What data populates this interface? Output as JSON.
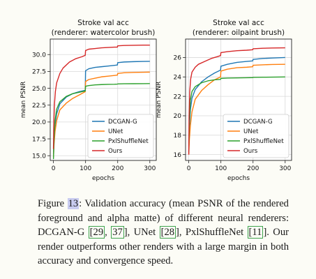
{
  "chart_data": [
    {
      "type": "line",
      "title": "Stroke val acc",
      "subtitle": "(renderer: watercolor brush)",
      "xlabel": "epochs",
      "ylabel": "mean PSNR",
      "xlim": [
        -10,
        320
      ],
      "ylim": [
        14.3,
        32.3
      ],
      "xticks": [
        0,
        100,
        200,
        300
      ],
      "yticks": [
        15.0,
        17.5,
        20.0,
        22.5,
        25.0,
        27.5,
        30.0
      ],
      "ytick_labels": [
        "15.0",
        "17.5",
        "20.0",
        "22.5",
        "25.0",
        "27.5",
        "30.0"
      ],
      "legend": "lower-right",
      "grid": true,
      "series": [
        {
          "name": "DCGAN-G",
          "color": "#1f77b4",
          "x": [
            0,
            2,
            5,
            10,
            20,
            40,
            60,
            80,
            99,
            100,
            110,
            130,
            150,
            170,
            190,
            199,
            200,
            220,
            250,
            280,
            300
          ],
          "y": [
            15.2,
            17.6,
            19.6,
            21.2,
            22.7,
            23.7,
            24.2,
            24.5,
            24.7,
            27.6,
            27.9,
            28.1,
            28.2,
            28.3,
            28.4,
            28.45,
            28.8,
            28.9,
            28.95,
            28.98,
            29.0
          ]
        },
        {
          "name": "UNet",
          "color": "#ff7f0e",
          "x": [
            0,
            2,
            5,
            10,
            20,
            40,
            60,
            80,
            99,
            100,
            110,
            130,
            150,
            170,
            190,
            199,
            200,
            220,
            250,
            280,
            300
          ],
          "y": [
            14.8,
            16.8,
            18.6,
            20.2,
            21.8,
            22.8,
            23.5,
            24.0,
            24.5,
            26.0,
            26.3,
            26.5,
            26.7,
            26.8,
            26.9,
            26.95,
            27.2,
            27.3,
            27.35,
            27.38,
            27.4
          ]
        },
        {
          "name": "PxlShuffleNet",
          "color": "#2ca02c",
          "x": [
            0,
            2,
            5,
            10,
            20,
            40,
            60,
            80,
            99,
            100,
            110,
            130,
            150,
            170,
            190,
            199,
            200,
            220,
            250,
            280,
            300
          ],
          "y": [
            14.5,
            17.4,
            20.2,
            21.9,
            23.0,
            23.8,
            24.2,
            24.4,
            24.6,
            25.3,
            25.4,
            25.5,
            25.55,
            25.58,
            25.6,
            25.62,
            25.65,
            25.67,
            25.68,
            25.69,
            25.7
          ]
        },
        {
          "name": "Ours",
          "color": "#d62728",
          "x": [
            0,
            1,
            3,
            6,
            10,
            20,
            30,
            50,
            70,
            90,
            99,
            100,
            110,
            130,
            150,
            170,
            190,
            199,
            200,
            220,
            250,
            280,
            300
          ],
          "y": [
            16.0,
            19.5,
            22.5,
            24.5,
            25.8,
            27.2,
            28.0,
            28.9,
            29.4,
            29.7,
            29.9,
            30.6,
            30.8,
            30.9,
            31.0,
            31.05,
            31.1,
            31.1,
            31.3,
            31.35,
            31.38,
            31.4,
            31.4
          ]
        }
      ]
    },
    {
      "type": "line",
      "title": "Stroke val acc",
      "subtitle": "(renderer: oilpaint brush)",
      "xlabel": "epochs",
      "ylabel": "mean PSNR",
      "xlim": [
        -10,
        320
      ],
      "ylim": [
        15.4,
        27.9
      ],
      "xticks": [
        0,
        100,
        200,
        300
      ],
      "yticks": [
        16,
        18,
        20,
        22,
        24,
        26
      ],
      "ytick_labels": [
        "16",
        "18",
        "20",
        "22",
        "24",
        "26"
      ],
      "legend": "lower-right",
      "grid": true,
      "series": [
        {
          "name": "DCGAN-G",
          "color": "#1f77b4",
          "x": [
            0,
            2,
            5,
            10,
            20,
            40,
            60,
            80,
            99,
            100,
            120,
            150,
            180,
            199,
            200,
            230,
            260,
            300
          ],
          "y": [
            16.3,
            18.8,
            20.6,
            21.8,
            22.7,
            23.5,
            24.0,
            24.4,
            24.7,
            25.1,
            25.3,
            25.5,
            25.6,
            25.65,
            25.8,
            25.9,
            25.95,
            26.0
          ]
        },
        {
          "name": "UNet",
          "color": "#ff7f0e",
          "x": [
            0,
            2,
            5,
            10,
            20,
            40,
            60,
            80,
            99,
            100,
            120,
            150,
            180,
            199,
            200,
            230,
            260,
            300
          ],
          "y": [
            16.0,
            17.6,
            19.0,
            20.4,
            21.7,
            22.6,
            23.2,
            23.7,
            24.0,
            24.6,
            24.8,
            24.95,
            25.0,
            25.05,
            25.2,
            25.25,
            25.28,
            25.3
          ]
        },
        {
          "name": "PxlShuffleNet",
          "color": "#2ca02c",
          "x": [
            0,
            2,
            5,
            10,
            20,
            40,
            60,
            80,
            99,
            100,
            120,
            150,
            180,
            199,
            200,
            230,
            260,
            300
          ],
          "y": [
            16.2,
            19.5,
            21.6,
            22.5,
            23.0,
            23.4,
            23.6,
            23.7,
            23.75,
            23.85,
            23.88,
            23.9,
            23.92,
            23.93,
            23.95,
            23.97,
            23.98,
            24.0
          ]
        },
        {
          "name": "Ours",
          "color": "#d62728",
          "x": [
            0,
            1,
            3,
            6,
            10,
            20,
            30,
            50,
            70,
            90,
            99,
            100,
            120,
            150,
            180,
            199,
            200,
            230,
            260,
            300
          ],
          "y": [
            16.0,
            19.8,
            22.5,
            23.8,
            24.5,
            25.0,
            25.3,
            25.6,
            25.9,
            26.1,
            26.2,
            26.5,
            26.6,
            26.7,
            26.75,
            26.8,
            26.9,
            26.95,
            26.98,
            27.0
          ]
        }
      ]
    }
  ],
  "caption": {
    "fig_label": "Figure ",
    "fig_num": "13",
    "part1": ": Validation accuracy (mean PSNR of the rendered foreground and alpha matte) of different neural renderers: DCGAN-G ",
    "cite_a": "[29",
    "sep_a": ", ",
    "cite_b": "37",
    "end_a": "], UNet ",
    "cite_c": "[28",
    "end_c": "], PxlShuffleNet ",
    "cite_d": "[11",
    "end_d": "]. Our render outperforms other renders with a large margin in both accuracy and convergence speed."
  }
}
